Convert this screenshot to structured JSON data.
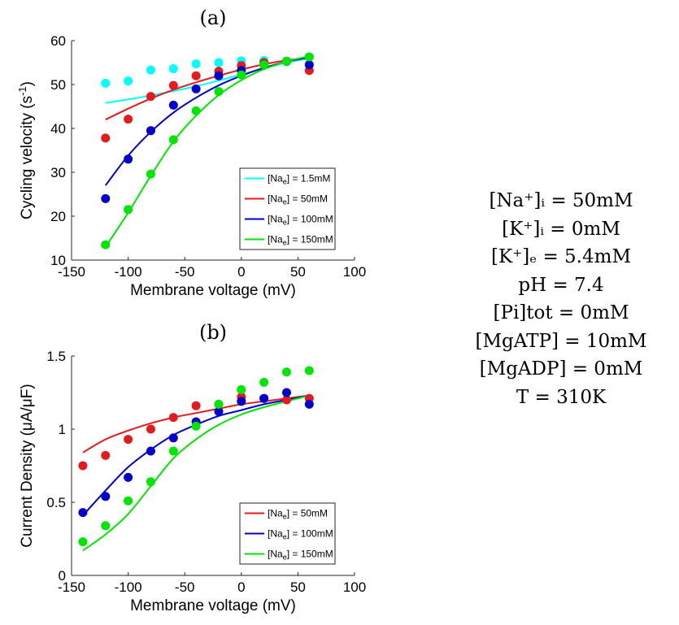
{
  "chart_data": [
    {
      "type": "scatter",
      "title": "(a)",
      "xlabel": "Membrane voltage (mV)",
      "ylabel": "Cycling velocity (s",
      "ylabel_sup": "-1",
      "ylabel_end": ")",
      "xlim": [
        -150,
        100
      ],
      "ylim": [
        10,
        60
      ],
      "xticks": [
        -150,
        -100,
        -50,
        0,
        50,
        100
      ],
      "xtick_labels": [
        "-150",
        "-100",
        "-50",
        "0",
        "50",
        "100"
      ],
      "yticks": [
        10,
        20,
        30,
        40,
        50,
        60
      ],
      "ytick_labels": [
        "10",
        "20",
        "30",
        "40",
        "50",
        "60"
      ],
      "legend_position": "bottom-right",
      "series": [
        {
          "name": "1.5mM",
          "color": "#00FFFF",
          "x": [
            -120,
            -100,
            -80,
            -60,
            -40,
            -20,
            0,
            20,
            40,
            60
          ],
          "y": [
            50.3,
            50.8,
            53.3,
            53.6,
            54.7,
            55.0,
            55.4,
            55.5,
            55.2,
            56.3
          ],
          "fit_x": [
            -120,
            -100,
            -80,
            -60,
            -40,
            -20,
            0,
            20,
            40,
            60
          ],
          "fit_y": [
            45.8,
            46.6,
            47.5,
            48.5,
            49.6,
            50.9,
            52.3,
            53.7,
            55.0,
            56.0
          ]
        },
        {
          "name": "50mM",
          "color": "#E41A1C",
          "x": [
            -120,
            -100,
            -80,
            -60,
            -40,
            -20,
            0,
            20,
            40,
            60
          ],
          "y": [
            37.8,
            42.1,
            47.3,
            49.8,
            52.0,
            53.0,
            54.3,
            55.0,
            55.3,
            53.2
          ],
          "fit_x": [
            -120,
            -100,
            -80,
            -60,
            -40,
            -20,
            0,
            20,
            40,
            60
          ],
          "fit_y": [
            42.0,
            44.5,
            46.8,
            48.8,
            50.5,
            52.0,
            53.4,
            54.6,
            55.5,
            56.2
          ]
        },
        {
          "name": "100mM",
          "color": "#0000CD",
          "x": [
            -120,
            -100,
            -80,
            -60,
            -40,
            -20,
            0,
            20,
            40,
            60
          ],
          "y": [
            24.0,
            33.0,
            39.5,
            45.3,
            49.0,
            52.0,
            53.2,
            54.5,
            55.3,
            54.5
          ],
          "fit_x": [
            -120,
            -100,
            -80,
            -60,
            -40,
            -20,
            0,
            20,
            40,
            60
          ],
          "fit_y": [
            27.0,
            33.8,
            39.2,
            43.6,
            47.0,
            49.8,
            52.0,
            53.8,
            55.2,
            56.2
          ]
        },
        {
          "name": "150mM",
          "color": "#00E600",
          "x": [
            -120,
            -100,
            -80,
            -60,
            -40,
            -20,
            0,
            20,
            40,
            60
          ],
          "y": [
            13.5,
            21.5,
            29.6,
            37.4,
            44.0,
            48.4,
            52.2,
            54.5,
            55.3,
            56.3
          ],
          "fit_x": [
            -120,
            -100,
            -80,
            -60,
            -40,
            -20,
            0,
            20,
            40,
            60
          ],
          "fit_y": [
            13.0,
            20.8,
            29.2,
            37.0,
            42.9,
            47.6,
            51.0,
            53.5,
            55.2,
            56.5
          ]
        }
      ]
    },
    {
      "type": "scatter",
      "title": "(b)",
      "xlabel": "Membrane voltage (mV)",
      "ylabel": "Current Density (μA/μF)",
      "xlim": [
        -150,
        100
      ],
      "ylim": [
        0,
        1.5
      ],
      "xticks": [
        -150,
        -100,
        -50,
        0,
        50,
        100
      ],
      "xtick_labels": [
        "-150",
        "-100",
        "-50",
        "0",
        "50",
        "100"
      ],
      "yticks": [
        0,
        0.5,
        1,
        1.5
      ],
      "ytick_labels": [
        "0",
        "0.5",
        "1",
        "1.5"
      ],
      "legend_position": "bottom-right",
      "series": [
        {
          "name": "50mM",
          "color": "#E41A1C",
          "x": [
            -140,
            -120,
            -100,
            -80,
            -60,
            -40,
            -20,
            0,
            20,
            40,
            60
          ],
          "y": [
            0.75,
            0.82,
            0.93,
            1.0,
            1.08,
            1.16,
            1.17,
            1.22,
            1.21,
            1.2,
            1.21
          ],
          "fit_x": [
            -140,
            -120,
            -100,
            -80,
            -60,
            -40,
            -20,
            0,
            20,
            40,
            60
          ],
          "fit_y": [
            0.84,
            0.93,
            0.99,
            1.04,
            1.08,
            1.11,
            1.14,
            1.17,
            1.19,
            1.21,
            1.23
          ]
        },
        {
          "name": "100mM",
          "color": "#0000CD",
          "x": [
            -140,
            -120,
            -100,
            -80,
            -60,
            -40,
            -20,
            0,
            20,
            40,
            60
          ],
          "y": [
            0.43,
            0.54,
            0.67,
            0.85,
            0.94,
            1.05,
            1.12,
            1.19,
            1.21,
            1.25,
            1.17
          ],
          "fit_x": [
            -140,
            -120,
            -100,
            -80,
            -60,
            -40,
            -20,
            0,
            20,
            40,
            60
          ],
          "fit_y": [
            0.41,
            0.58,
            0.74,
            0.86,
            0.96,
            1.03,
            1.09,
            1.13,
            1.17,
            1.2,
            1.23
          ]
        },
        {
          "name": "150mM",
          "color": "#00E600",
          "x": [
            -140,
            -120,
            -100,
            -80,
            -60,
            -40,
            -20,
            0,
            20,
            40,
            60
          ],
          "y": [
            0.23,
            0.34,
            0.51,
            0.64,
            0.85,
            1.02,
            1.17,
            1.27,
            1.32,
            1.39,
            1.4
          ],
          "fit_x": [
            -140,
            -120,
            -100,
            -80,
            -60,
            -40,
            -20,
            0,
            20,
            40,
            60
          ],
          "fit_y": [
            0.17,
            0.28,
            0.42,
            0.61,
            0.8,
            0.93,
            1.03,
            1.1,
            1.15,
            1.19,
            1.23
          ]
        }
      ]
    }
  ],
  "legend_prefix": "[Na",
  "legend_sub": "e",
  "legend_mid": "] = ",
  "conditions": [
    "[Na⁺]ᵢ = 50mM",
    "[K⁺]ᵢ = 0mM",
    "[K⁺]ₑ = 5.4mM",
    "pH = 7.4",
    "[Pi]tot = 0mM",
    "[MgATP] = 10mM",
    "[MgADP] = 0mM",
    "T = 310K"
  ],
  "colors": {
    "cyan": "#00FFFF",
    "red": "#E41A1C",
    "blue": "#0000CD",
    "green": "#00E600"
  }
}
